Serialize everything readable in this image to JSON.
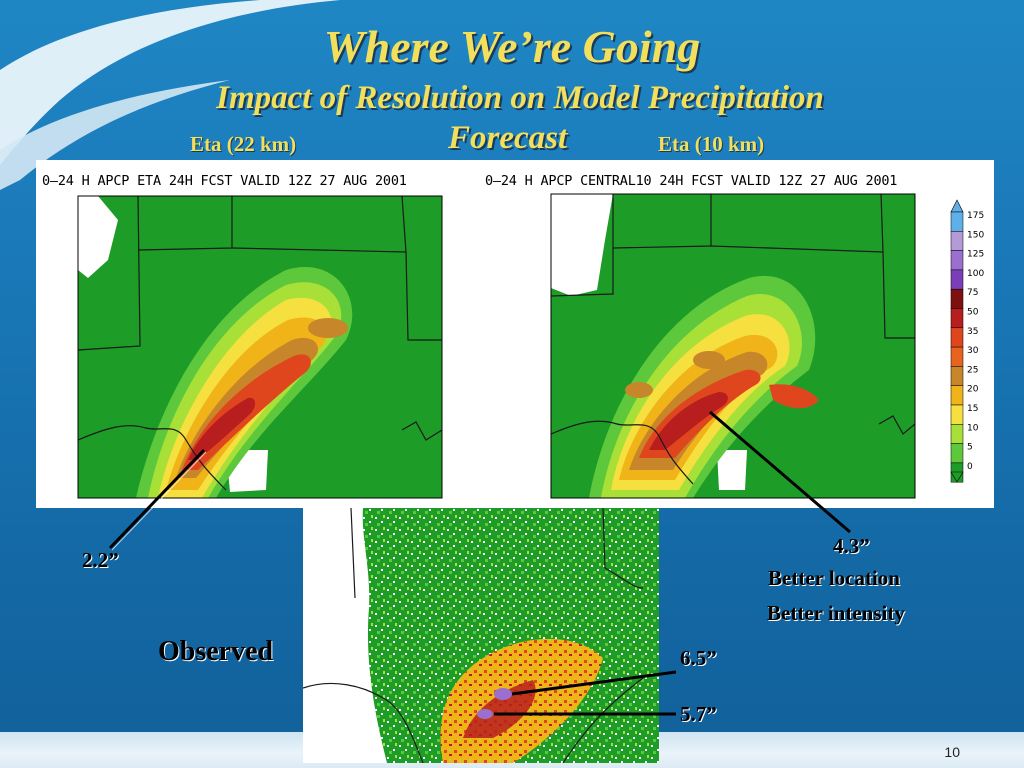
{
  "slide": {
    "title": "Where We’re Going",
    "subtitle_line1": "Impact of Resolution on Model Precipitation",
    "subtitle_line2": "Forecast",
    "page_number": "10"
  },
  "left_panel": {
    "label": "Eta (22 km)",
    "map_title": "0–24 H APCP ETA 24H FCST VALID 12Z 27 AUG 2001",
    "annotation": "2.2”"
  },
  "right_panel": {
    "label": "Eta (10 km)",
    "map_title": "0–24 H APCP CENTRAL10 24H FCST VALID 12Z 27 AUG 2001",
    "annotation": "4.3”",
    "note_line1": "Better location",
    "note_line2": "Better intensity",
    "legend": [
      "175",
      "150",
      "125",
      "100",
      "75",
      "50",
      "35",
      "30",
      "25",
      "20",
      "15",
      "10",
      "5",
      "0"
    ],
    "legend_colors": [
      "#5fb0e8",
      "#b59ad8",
      "#9b6fd0",
      "#7a3fb8",
      "#7e1010",
      "#b81e1e",
      "#e0461e",
      "#e8641e",
      "#c8862a",
      "#f0b418",
      "#f5e040",
      "#a8e038",
      "#5ec83c",
      "#1e9c28"
    ]
  },
  "observed": {
    "label": "Observed",
    "max1": "6.5”",
    "max2": "5.7”"
  },
  "colors": {
    "accent_text": "#f2e05c",
    "background": "#1a78b8"
  }
}
